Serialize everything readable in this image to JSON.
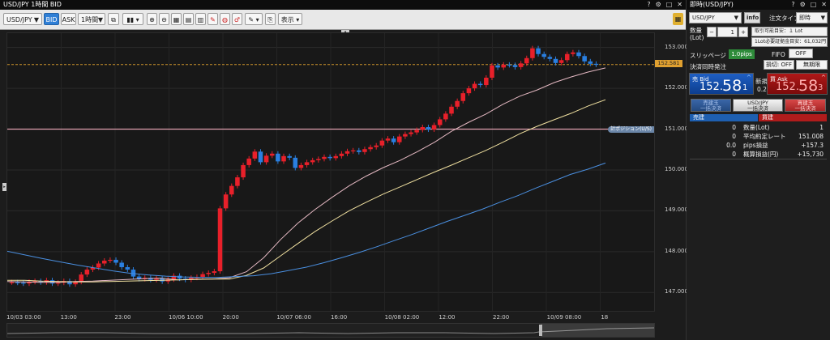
{
  "chart_window": {
    "title": "USD/JPY 1時間 BID",
    "toolbar": {
      "symbol": "USD/JPY",
      "bid_label": "BID",
      "ask_label": "ASK",
      "timeframe": "1時間",
      "display_label": "表示"
    },
    "current_price_tag": "152.581",
    "order_line_label": "計ポジション(U/S)",
    "y_ticks": [
      "153.000",
      "152.000",
      "151.000",
      "150.000",
      "149.000",
      "148.000",
      "147.000"
    ],
    "x_ticks": [
      "10/03 03:00",
      "13:00",
      "23:00",
      "10/06 10:00",
      "20:00",
      "10/07 06:00",
      "16:00",
      "10/08 02:00",
      "12:00",
      "22:00",
      "10/09 08:00",
      "18"
    ]
  },
  "chart_data": {
    "type": "candlestick",
    "title": "USD/JPY 1時間 BID",
    "ylim": [
      146.55,
      153.35
    ],
    "y_ticks": [
      147.0,
      148.0,
      149.0,
      150.0,
      151.0,
      152.0,
      153.0
    ],
    "x_ticks": [
      "10/03 03:00",
      "13:00",
      "23:00",
      "10/06 10:00",
      "20:00",
      "10/07 06:00",
      "16:00",
      "10/08 02:00",
      "12:00",
      "22:00",
      "10/09 08:00",
      "18"
    ],
    "candles_close": [
      147.25,
      147.24,
      147.22,
      147.26,
      147.28,
      147.25,
      147.3,
      147.22,
      147.24,
      147.28,
      147.2,
      147.26,
      147.44,
      147.56,
      147.61,
      147.71,
      147.78,
      147.8,
      147.73,
      147.62,
      147.56,
      147.39,
      147.33,
      147.36,
      147.31,
      147.35,
      147.27,
      147.32,
      147.41,
      147.34,
      147.31,
      147.36,
      147.38,
      147.45,
      147.48,
      147.52,
      149.06,
      149.4,
      149.61,
      149.82,
      150.12,
      150.28,
      150.45,
      150.19,
      150.35,
      150.4,
      150.21,
      150.34,
      150.3,
      150.05,
      150.12,
      150.19,
      150.24,
      150.27,
      150.32,
      150.29,
      150.34,
      150.4,
      150.46,
      150.48,
      150.44,
      150.51,
      150.56,
      150.6,
      150.72,
      150.77,
      150.68,
      150.82,
      150.88,
      150.92,
      150.98,
      151.05,
      150.99,
      151.1,
      151.24,
      151.38,
      151.55,
      151.69,
      151.88,
      152.0,
      152.11,
      152.08,
      152.26,
      152.56,
      152.51,
      152.58,
      152.57,
      152.52,
      152.61,
      152.74,
      152.98,
      152.84,
      152.77,
      152.72,
      152.62,
      152.69,
      152.84,
      152.88,
      152.79,
      152.66,
      152.6,
      152.58
    ],
    "moving_averages": [
      {
        "name": "",
        "color": "#e4b8c2",
        "values": [
          147.27,
          147.26,
          147.25,
          147.25,
          147.27,
          147.28,
          147.3,
          147.32,
          147.34,
          147.35,
          147.31,
          147.33,
          147.33,
          147.36,
          147.51,
          147.85,
          148.3,
          148.7,
          149.03,
          149.33,
          149.61,
          149.85,
          150.06,
          150.24,
          150.45,
          150.68,
          150.95,
          151.17,
          151.37,
          151.61,
          151.81,
          151.96,
          152.14,
          152.28,
          152.4,
          152.5
        ]
      },
      {
        "name": "",
        "color": "#f0e0a0",
        "values": [
          147.3,
          147.3,
          147.28,
          147.27,
          147.26,
          147.26,
          147.27,
          147.28,
          147.29,
          147.3,
          147.31,
          147.32,
          147.33,
          147.33,
          147.42,
          147.6,
          147.9,
          148.2,
          148.49,
          148.75,
          149.0,
          149.21,
          149.41,
          149.59,
          149.77,
          149.95,
          150.12,
          150.3,
          150.48,
          150.68,
          150.89,
          151.07,
          151.23,
          151.39,
          151.57,
          151.72
        ]
      },
      {
        "name": "",
        "color": "#4a8fe0",
        "values": [
          148.01,
          147.92,
          147.83,
          147.75,
          147.67,
          147.6,
          147.53,
          147.47,
          147.43,
          147.4,
          147.38,
          147.37,
          147.37,
          147.39,
          147.41,
          147.46,
          147.54,
          147.62,
          147.73,
          147.85,
          147.98,
          148.12,
          148.27,
          148.42,
          148.58,
          148.74,
          148.89,
          149.04,
          149.21,
          149.37,
          149.55,
          149.72,
          149.89,
          150.02,
          150.17
        ]
      }
    ],
    "horizontal_lines": [
      152.581,
      151.0
    ]
  },
  "order_panel": {
    "title": "即時(USD/JPY)",
    "symbol": "USD/JPY",
    "info_label": "info",
    "order_type_label": "注文タイプ",
    "order_type_value": "即時",
    "quantity_label": "数量\n(Lot)",
    "quantity_value": "1",
    "minus": "−",
    "plus": "+",
    "tradable_label": "取引可能目安：１ Lot",
    "margin_label": "1Lot必要証拠金目安：61,032円",
    "slippage_label": "スリッページ",
    "slippage_value": "1.0pips",
    "fifo_label": "FIFO",
    "fifo_value": "OFF",
    "settle_label": "決済同時発注",
    "settle_value": "損切: OFF",
    "unlimited_label": "無期限",
    "sell_label": "売 Bid",
    "sell_price_main": "152.",
    "sell_price_big": "58",
    "sell_price_small": "1",
    "new_label": "新規",
    "spread": "0.2",
    "buy_label": "買 Ask",
    "buy_price_main": "152.",
    "buy_price_big": "58",
    "buy_price_small": "3",
    "sell_close_btn": "売建玉\n一括決済",
    "all_close_btn": "USD/JPY\n一括決済",
    "buy_close_btn": "買建玉\n一括決済",
    "table_header_sell": "売建",
    "table_header_buy": "買建",
    "rows": [
      {
        "sell": "0",
        "label": "数量(Lot)",
        "buy": "1"
      },
      {
        "sell": "0",
        "label": "平均約定レート",
        "buy": "151.008"
      },
      {
        "sell": "0.0",
        "label": "pips損益",
        "buy": "+157.3"
      },
      {
        "sell": "0",
        "label": "概算損益(円)",
        "buy": "+15,730"
      }
    ]
  }
}
